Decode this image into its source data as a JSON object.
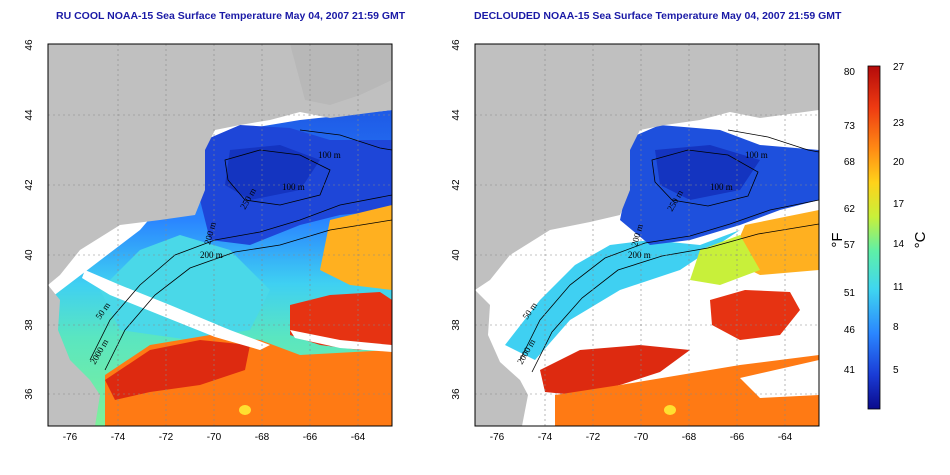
{
  "titles": {
    "left": "RU COOL NOAA-15 Sea Surface Temperature May 04, 2007 21:59 GMT",
    "right": "DECLOUDED NOAA-15 Sea Surface Temperature May 04, 2007 21:59 GMT"
  },
  "axes": {
    "lon_ticks": [
      "-76",
      "-74",
      "-72",
      "-70",
      "-68",
      "-66",
      "-64"
    ],
    "lat_ticks": [
      "46",
      "44",
      "42",
      "40",
      "38",
      "36"
    ]
  },
  "contour_labels": {
    "left": [
      "100 m",
      "100 m",
      "250 m",
      "200 m",
      "200 m",
      "50 m",
      "2000 m"
    ],
    "right": [
      "100 m",
      "100 m",
      "250 m",
      "200 m",
      "200 m",
      "50 m",
      "2000 m"
    ]
  },
  "colorbar": {
    "fahrenheit_ticks": [
      "80",
      "73",
      "68",
      "62",
      "57",
      "51",
      "46",
      "41"
    ],
    "celsius_ticks": [
      "27",
      "23",
      "20",
      "17",
      "14",
      "11",
      "8",
      "5"
    ],
    "fahrenheit_unit": "°F",
    "celsius_unit": "°C",
    "colors": [
      "#0a0a8c",
      "#1a3cd6",
      "#2a86ff",
      "#3fd6f0",
      "#5ef0a8",
      "#c8f03a",
      "#ffd21a",
      "#ff8a14",
      "#ee3a12",
      "#b40a0a"
    ]
  },
  "colors": {
    "land": "#c0c0c0",
    "cloud": "#ffffff",
    "title": "#1a1aa6"
  }
}
